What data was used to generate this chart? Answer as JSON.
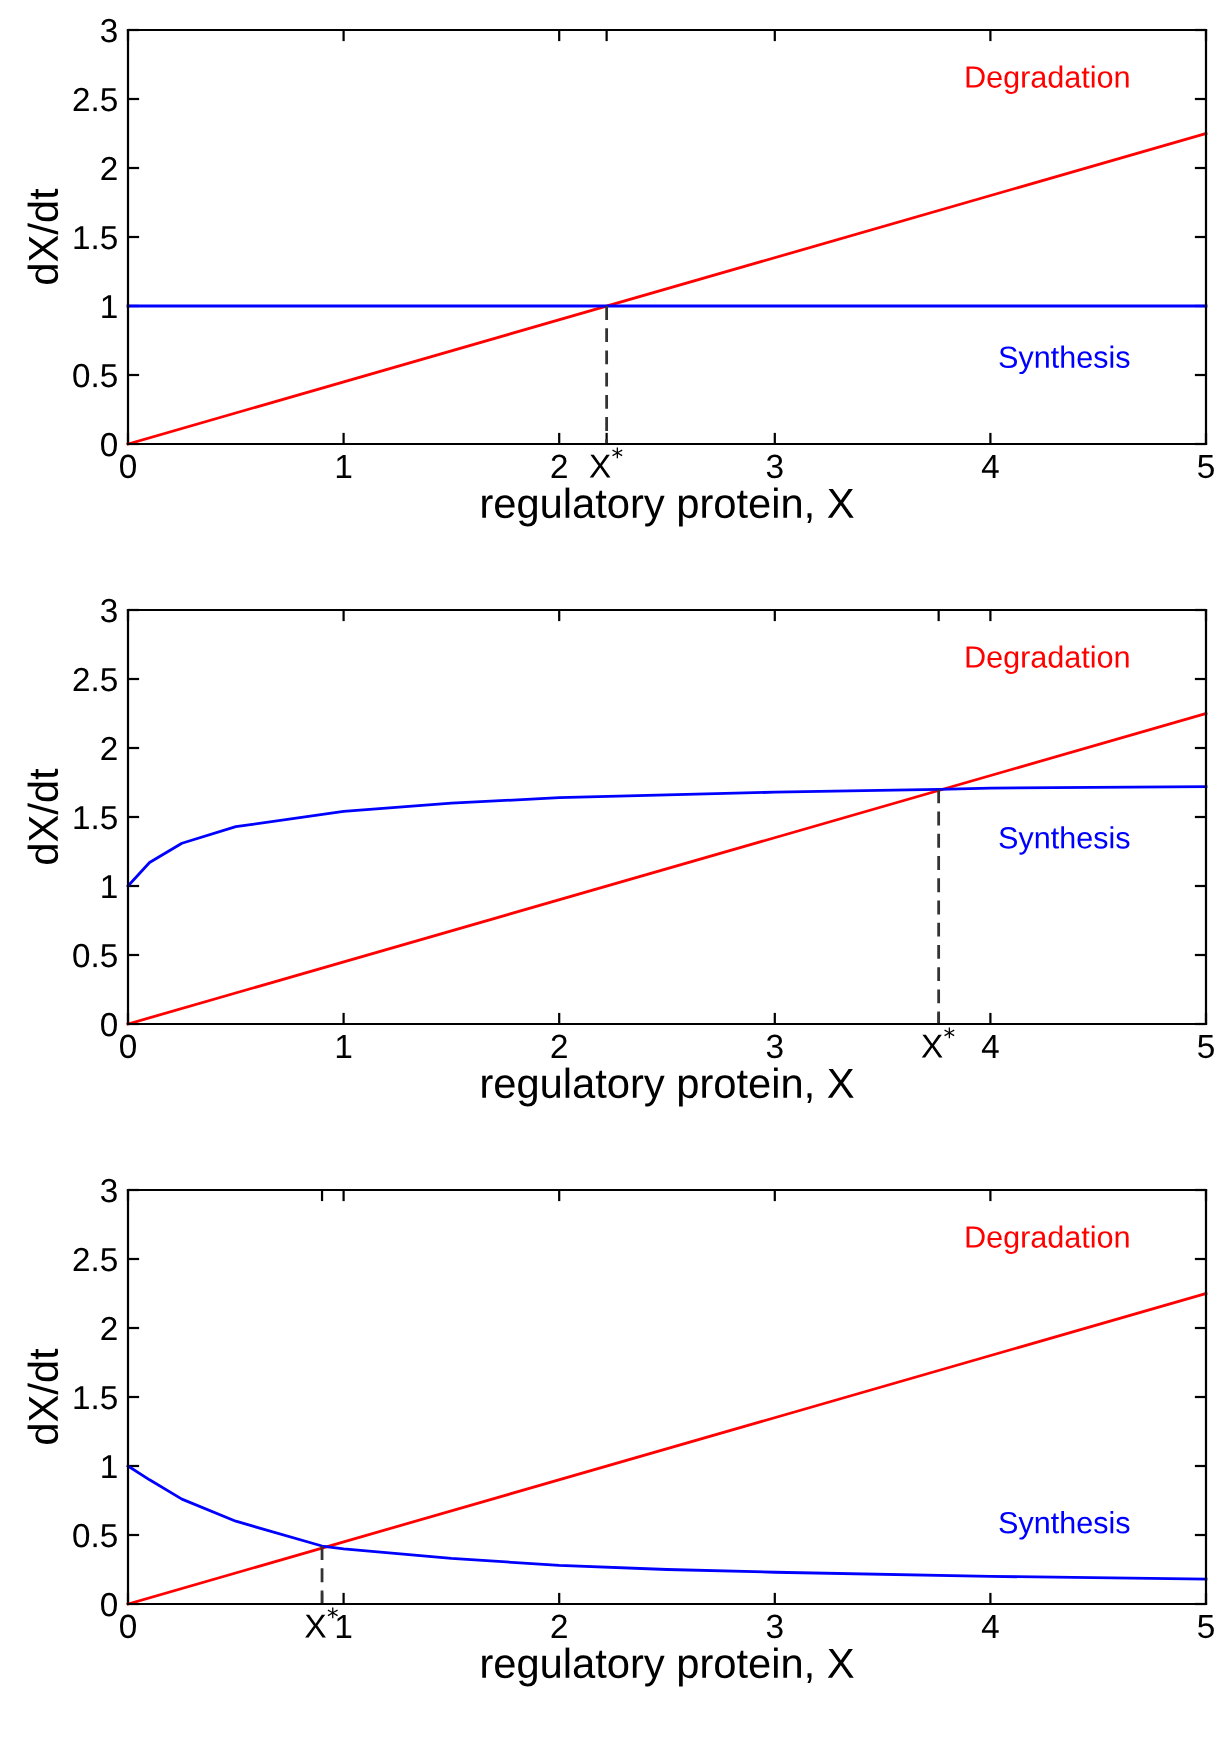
{
  "chart_data": [
    {
      "type": "line",
      "xlabel": "regulatory protein, X",
      "ylabel": "dX/dt",
      "xlim": [
        0,
        5
      ],
      "ylim": [
        0,
        3
      ],
      "xticks": [
        0,
        1,
        2,
        {
          "value": 2.22,
          "label": "X$^{*}$"
        },
        3,
        4,
        5
      ],
      "yticks": [
        0,
        0.5,
        1,
        1.5,
        2,
        2.5,
        3
      ],
      "grid": false,
      "legend": false,
      "series": [
        {
          "name": "Degradation",
          "color": "#ff0000",
          "x": [
            0,
            5
          ],
          "values": [
            0,
            2.25
          ]
        },
        {
          "name": "Synthesis",
          "color": "#0000ff",
          "x": [
            0,
            5
          ],
          "values": [
            1,
            1
          ]
        },
        {
          "color": "#333333",
          "line_style": "dashed",
          "x": [
            2.22,
            2.22
          ],
          "values": [
            1,
            0
          ]
        }
      ]
    },
    {
      "type": "line",
      "xlabel": "regulatory protein, X",
      "ylabel": "dX/dt",
      "xlim": [
        0,
        5
      ],
      "ylim": [
        0,
        3
      ],
      "xticks": [
        0,
        1,
        2,
        3,
        {
          "value": 3.76,
          "label": "X$^{*}$"
        },
        4,
        5
      ],
      "yticks": [
        0,
        0.5,
        1,
        1.5,
        2,
        2.5,
        3
      ],
      "grid": false,
      "legend": false,
      "series": [
        {
          "name": "Degradation",
          "color": "#ff0000",
          "x": [
            0,
            5
          ],
          "values": [
            0,
            2.25
          ]
        },
        {
          "name": "Synthesis",
          "color": "#0000ff",
          "x": [
            0,
            0.1,
            0.25,
            0.5,
            1,
            1.5,
            2,
            2.5,
            3,
            3.76,
            4,
            5
          ],
          "values": [
            1.0,
            1.17,
            1.31,
            1.43,
            1.54,
            1.6,
            1.64,
            1.66,
            1.68,
            1.7,
            1.71,
            1.72
          ]
        },
        {
          "color": "#333333",
          "line_style": "dashed",
          "x": [
            3.76,
            3.76
          ],
          "values": [
            1.7,
            0
          ]
        }
      ]
    },
    {
      "type": "line",
      "xlabel": "regulatory protein, X",
      "ylabel": "dX/dt",
      "xlim": [
        0,
        5
      ],
      "ylim": [
        0,
        3
      ],
      "xticks": [
        0,
        {
          "value": 0.9,
          "label": "X$^{*}$"
        },
        1,
        2,
        3,
        4,
        5
      ],
      "yticks": [
        0,
        0.5,
        1,
        1.5,
        2,
        2.5,
        3
      ],
      "grid": false,
      "legend": false,
      "series": [
        {
          "name": "Degradation",
          "color": "#ff0000",
          "x": [
            0,
            5
          ],
          "values": [
            0,
            2.25
          ]
        },
        {
          "name": "Synthesis",
          "color": "#0000ff",
          "x": [
            0,
            0.1,
            0.25,
            0.5,
            0.9,
            1,
            1.5,
            2,
            2.5,
            3,
            4,
            5
          ],
          "values": [
            1.0,
            0.9,
            0.76,
            0.6,
            0.42,
            0.4,
            0.33,
            0.28,
            0.25,
            0.23,
            0.2,
            0.18
          ]
        },
        {
          "color": "#333333",
          "line_style": "dashed",
          "x": [
            0.9,
            0.9
          ],
          "values": [
            0.42,
            0
          ]
        }
      ]
    }
  ]
}
